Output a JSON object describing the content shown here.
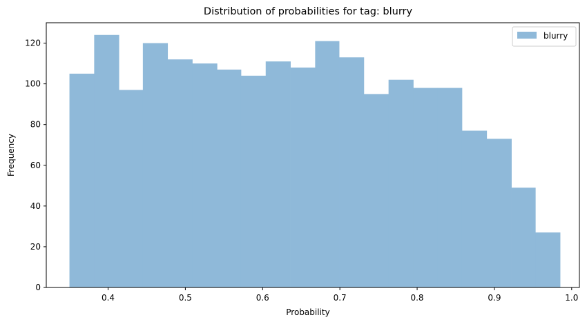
{
  "chart_data": {
    "type": "bar",
    "title": "Distribution of probabilities for tag: blurry",
    "xlabel": "Probability",
    "ylabel": "Frequency",
    "xlim": [
      0.32,
      1.01
    ],
    "ylim": [
      0,
      130
    ],
    "x_ticks": [
      "0.4",
      "0.5",
      "0.6",
      "0.7",
      "0.8",
      "0.9",
      "1.0"
    ],
    "y_ticks": [
      "0",
      "20",
      "40",
      "60",
      "80",
      "100",
      "120"
    ],
    "legend": {
      "label": "blurry",
      "position": "top-right"
    },
    "series": [
      {
        "name": "blurry",
        "color": "#8fb9d9",
        "bin_edges": [
          0.35,
          0.382,
          0.414,
          0.445,
          0.477,
          0.509,
          0.541,
          0.572,
          0.604,
          0.636,
          0.668,
          0.699,
          0.731,
          0.763,
          0.795,
          0.826,
          0.858,
          0.89,
          0.922,
          0.953,
          0.985
        ],
        "values": [
          105,
          124,
          97,
          120,
          112,
          110,
          107,
          104,
          111,
          108,
          121,
          113,
          95,
          102,
          98,
          98,
          77,
          73,
          49,
          27
        ]
      }
    ]
  }
}
